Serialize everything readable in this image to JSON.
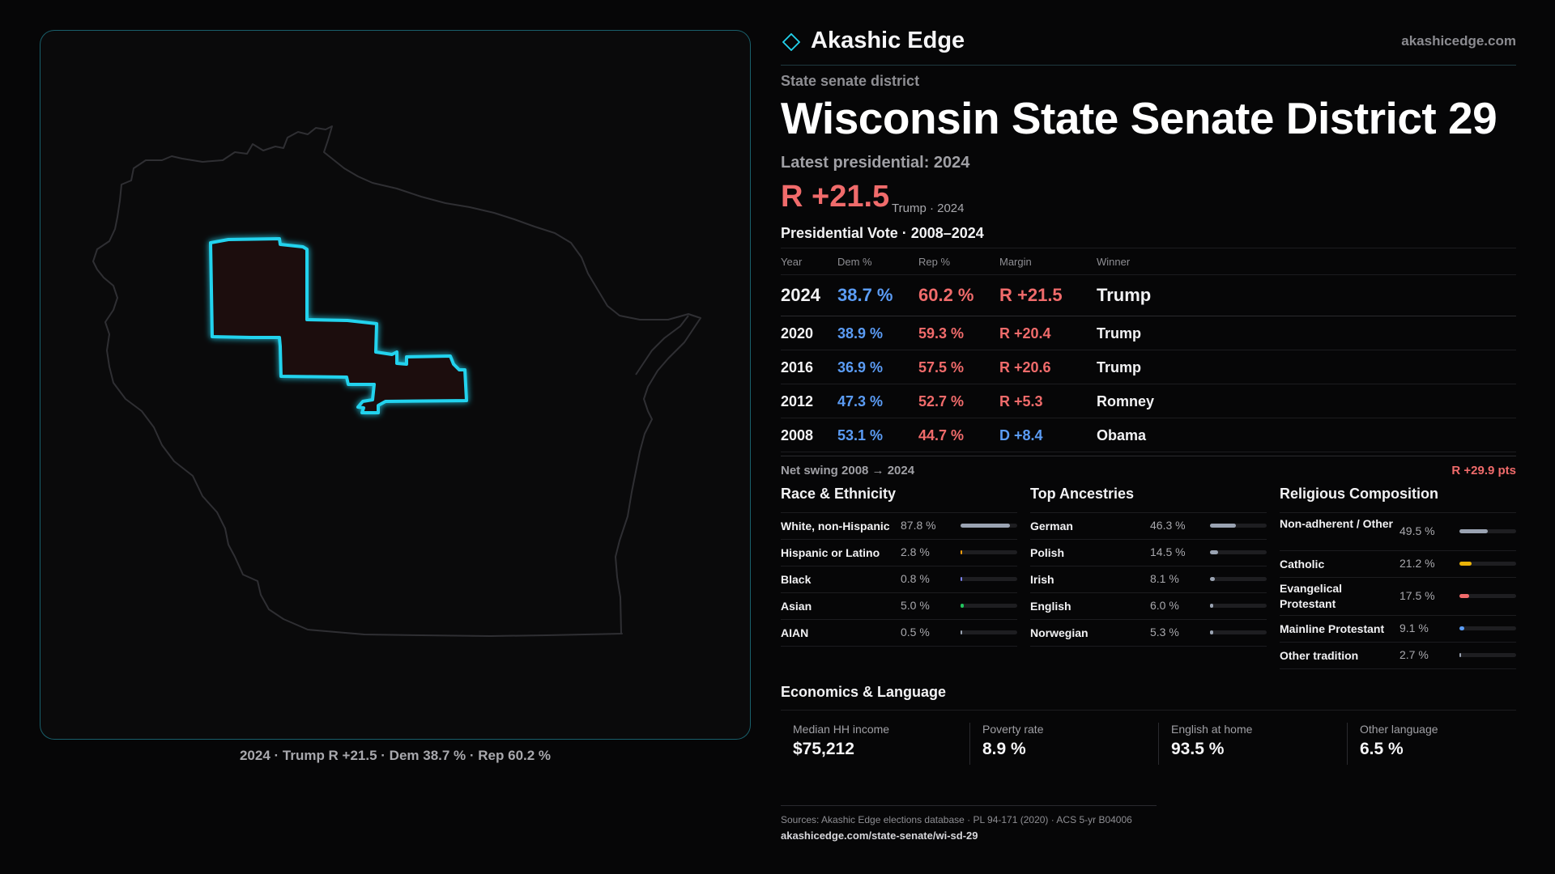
{
  "brand": {
    "name": "Akashic Edge",
    "url": "akashicedge.com",
    "logo_icon": "diamond-icon"
  },
  "header": {
    "eyebrow": "State senate district",
    "title": "Wisconsin State Senate District 29",
    "latest_label": "Latest presidential: 2024",
    "margin": "R +21.5",
    "margin_sub": "Trump · 2024"
  },
  "map": {
    "caption": "2024 · Trump R +21.5 · Dem 38.7 % · Rep 60.2 %",
    "district_color": "#22d3ee"
  },
  "presidential": {
    "title": "Presidential Vote · 2008–2024",
    "columns": [
      "Year",
      "Dem %",
      "Rep %",
      "Margin",
      "Winner"
    ],
    "rows": [
      {
        "year": "2024",
        "dem": "38.7 %",
        "rep": "60.2 %",
        "margin": "R +21.5",
        "party": "R",
        "winner": "Trump"
      },
      {
        "year": "2020",
        "dem": "38.9 %",
        "rep": "59.3 %",
        "margin": "R +20.4",
        "party": "R",
        "winner": "Trump"
      },
      {
        "year": "2016",
        "dem": "36.9 %",
        "rep": "57.5 %",
        "margin": "R +20.6",
        "party": "R",
        "winner": "Trump"
      },
      {
        "year": "2012",
        "dem": "47.3 %",
        "rep": "52.7 %",
        "margin": "R +5.3",
        "party": "R",
        "winner": "Romney"
      },
      {
        "year": "2008",
        "dem": "53.1 %",
        "rep": "44.7 %",
        "margin": "D +8.4",
        "party": "D",
        "winner": "Obama"
      }
    ],
    "net_swing_label": "Net swing 2008 → 2024",
    "net_swing_value": "R +29.9 pts"
  },
  "race": {
    "title": "Race & Ethnicity",
    "items": [
      {
        "label": "White, non-Hispanic",
        "value": "87.8 %",
        "pct": 87.8,
        "color": "#9aa3b2"
      },
      {
        "label": "Hispanic or Latino",
        "value": "2.8 %",
        "pct": 2.8,
        "color": "#f59e0b"
      },
      {
        "label": "Black",
        "value": "0.8 %",
        "pct": 0.8,
        "color": "#7c83f0"
      },
      {
        "label": "Asian",
        "value": "5.0 %",
        "pct": 5.0,
        "color": "#22c55e"
      },
      {
        "label": "AIAN",
        "value": "0.5 %",
        "pct": 0.5,
        "color": "#9aa3b2"
      }
    ]
  },
  "ancestry": {
    "title": "Top Ancestries",
    "items": [
      {
        "label": "German",
        "value": "46.3 %",
        "pct": 46.3,
        "color": "#9aa3b2"
      },
      {
        "label": "Polish",
        "value": "14.5 %",
        "pct": 14.5,
        "color": "#9aa3b2"
      },
      {
        "label": "Irish",
        "value": "8.1 %",
        "pct": 8.1,
        "color": "#9aa3b2"
      },
      {
        "label": "English",
        "value": "6.0 %",
        "pct": 6.0,
        "color": "#9aa3b2"
      },
      {
        "label": "Norwegian",
        "value": "5.3 %",
        "pct": 5.3,
        "color": "#9aa3b2"
      }
    ]
  },
  "religion": {
    "title": "Religious Composition",
    "items": [
      {
        "label": "Non-adherent / Other",
        "value": "49.5 %",
        "pct": 49.5,
        "color": "#9aa3b2"
      },
      {
        "label": "Catholic",
        "value": "21.2 %",
        "pct": 21.2,
        "color": "#eab308"
      },
      {
        "label": "Evangelical Protestant",
        "value": "17.5 %",
        "pct": 17.5,
        "color": "#f06b6b"
      },
      {
        "label": "Mainline Protestant",
        "value": "9.1 %",
        "pct": 9.1,
        "color": "#5b9cf5"
      },
      {
        "label": "Other tradition",
        "value": "2.7 %",
        "pct": 2.7,
        "color": "#9aa3b2"
      }
    ]
  },
  "economics": {
    "title": "Economics & Language",
    "cells": [
      {
        "label": "Median HH income",
        "value": "$75,212"
      },
      {
        "label": "Poverty rate",
        "value": "8.9 %"
      },
      {
        "label": "English at home",
        "value": "93.5 %"
      },
      {
        "label": "Other language",
        "value": "6.5 %"
      }
    ]
  },
  "sources": {
    "line": "Sources: Akashic Edge elections database · PL 94-171 (2020) · ACS 5-yr B04006",
    "url": "akashicedge.com/state-senate/wi-sd-29"
  },
  "colors": {
    "dem": "#5b9cf5",
    "rep": "#f06b6b",
    "accent": "#22d3ee"
  }
}
